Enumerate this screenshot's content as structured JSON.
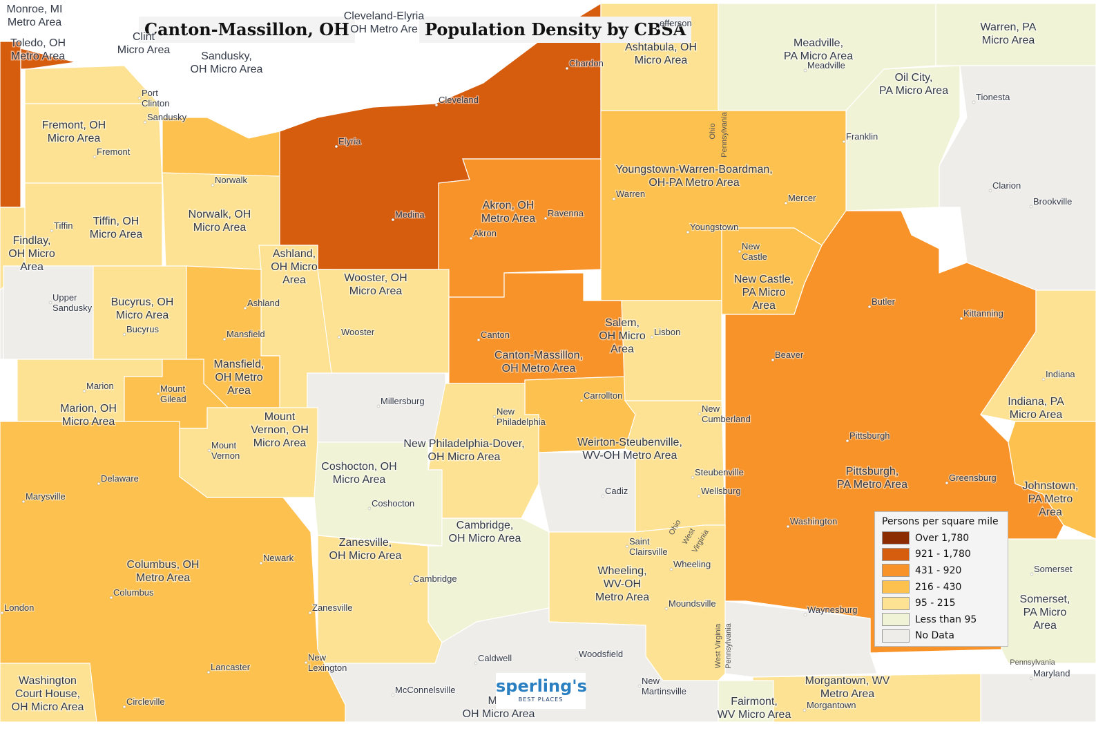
{
  "header": {
    "region_title": "Canton-Massillon, OH",
    "map_title": "Population Density by CBSA"
  },
  "legend": {
    "title": "Persons per square mile",
    "items": [
      {
        "label": "Over 1,780",
        "color": "#8b2c02"
      },
      {
        "label": "921 - 1,780",
        "color": "#d65c0e"
      },
      {
        "label": "431 - 920",
        "color": "#f79329"
      },
      {
        "label": "216 - 430",
        "color": "#fdc150"
      },
      {
        "label": "95 - 215",
        "color": "#fde293"
      },
      {
        "label": "Less than 95",
        "color": "#f1f3d6"
      },
      {
        "label": "No Data",
        "color": "#eeede9"
      }
    ]
  },
  "logo": {
    "name": "sperling's",
    "tagline": "BEST PLACES"
  },
  "area_labels": [
    {
      "text": "Monroe, MI\nMetro Area"
    },
    {
      "text": "Toledo, OH\nMetro Area"
    },
    {
      "text": "Clint\nMicro Area"
    },
    {
      "text": "Sandusky,\nOH Micro Area"
    },
    {
      "text": "Cleveland-Elyria\nOH Metro Are"
    },
    {
      "text": "Ashtabula, OH\nMicro Area"
    },
    {
      "text": "Meadville,\nPA Micro Area"
    },
    {
      "text": "Warren, PA\nMicro Area"
    },
    {
      "text": "Oil City,\nPA Micro Area"
    },
    {
      "text": "Fremont, OH\nMicro Area"
    },
    {
      "text": "Youngstown-Warren-Boardman,\nOH-PA Metro Area"
    },
    {
      "text": "Akron, OH\nMetro Area"
    },
    {
      "text": "Norwalk, OH\nMicro Area"
    },
    {
      "text": "Tiffin, OH\nMicro Area"
    },
    {
      "text": "Findlay,\nOH Micro\nArea"
    },
    {
      "text": "Ashland,\nOH Micro\nArea"
    },
    {
      "text": "Wooster, OH\nMicro Area"
    },
    {
      "text": "New Castle,\nPA Micro\nArea"
    },
    {
      "text": "Bucyrus, OH\nMicro Area"
    },
    {
      "text": "Salem,\nOH Micro\nArea"
    },
    {
      "text": "Canton-Massillon,\nOH Metro Area"
    },
    {
      "text": "Mansfield,\nOH Metro\nArea"
    },
    {
      "text": "Marion, OH\nMicro Area"
    },
    {
      "text": "Mount\nVernon, OH\nMicro Area"
    },
    {
      "text": "New Philadelphia-Dover,\nOH Micro Area"
    },
    {
      "text": "Weirton-Steubenville,\nWV-OH Metro Area"
    },
    {
      "text": "Indiana, PA\nMicro Area"
    },
    {
      "text": "Coshocton, OH\nMicro Area"
    },
    {
      "text": "Pittsburgh,\nPA Metro Area"
    },
    {
      "text": "Johnstown,\nPA Metro\nArea"
    },
    {
      "text": "Cambridge,\nOH Micro Area"
    },
    {
      "text": "Zanesville,\nOH Micro Area"
    },
    {
      "text": "Columbus, OH\nMetro Area"
    },
    {
      "text": "Wheeling,\nWV-OH\nMetro Area"
    },
    {
      "text": "Somerset,\nPA Micro\nArea"
    },
    {
      "text": "Washington\nCourt House,\nOH Micro Area"
    },
    {
      "text": "Morgantown, WV\nMetro Area"
    },
    {
      "text": "Fairmont,\nWV Micro Area"
    },
    {
      "text": "Mari\nOH Micro Area"
    }
  ],
  "city_labels": [
    {
      "text": "Port\nClinton"
    },
    {
      "text": "Sandusky"
    },
    {
      "text": "Fremont"
    },
    {
      "text": "Norwalk"
    },
    {
      "text": "Tiffin"
    },
    {
      "text": "Elyria"
    },
    {
      "text": "Cleveland"
    },
    {
      "text": "Chardon"
    },
    {
      "text": "efferson"
    },
    {
      "text": "Meadville"
    },
    {
      "text": "Tionesta"
    },
    {
      "text": "Franklin"
    },
    {
      "text": "Clarion"
    },
    {
      "text": "Brookville"
    },
    {
      "text": "Warren"
    },
    {
      "text": "Mercer"
    },
    {
      "text": "Youngstown"
    },
    {
      "text": "Medina"
    },
    {
      "text": "Ravenna"
    },
    {
      "text": "Akron"
    },
    {
      "text": "New\nCastle"
    },
    {
      "text": "Butler"
    },
    {
      "text": "Kittanning"
    },
    {
      "text": "Upper\nSandusky"
    },
    {
      "text": "Ashland"
    },
    {
      "text": "Bucyrus"
    },
    {
      "text": "Mansfield"
    },
    {
      "text": "Wooster"
    },
    {
      "text": "Canton"
    },
    {
      "text": "Lisbon"
    },
    {
      "text": "Beaver"
    },
    {
      "text": "Indiana"
    },
    {
      "text": "Marion"
    },
    {
      "text": "Mount\nGilead"
    },
    {
      "text": "Millersburg"
    },
    {
      "text": "Carrollton"
    },
    {
      "text": "New\nPhiladelphia"
    },
    {
      "text": "New\nCumberland"
    },
    {
      "text": "Pittsburgh"
    },
    {
      "text": "Mount\nVernon"
    },
    {
      "text": "Delaware"
    },
    {
      "text": "Marysville"
    },
    {
      "text": "Steubenville"
    },
    {
      "text": "Greensburg"
    },
    {
      "text": "Cadiz"
    },
    {
      "text": "Wellsburg"
    },
    {
      "text": "Coshocton"
    },
    {
      "text": "Washington"
    },
    {
      "text": "Saint\nClairsville"
    },
    {
      "text": "Wheeling"
    },
    {
      "text": "Somerset"
    },
    {
      "text": "Newark"
    },
    {
      "text": "Cambridge"
    },
    {
      "text": "Columbus"
    },
    {
      "text": "Moundsville"
    },
    {
      "text": "Waynesburg"
    },
    {
      "text": "London"
    },
    {
      "text": "Zanesville"
    },
    {
      "text": "Caldwell"
    },
    {
      "text": "Woodsfield"
    },
    {
      "text": "Lancaster"
    },
    {
      "text": "New\nLexington"
    },
    {
      "text": "New\nMartinsville"
    },
    {
      "text": "McConnelsville"
    },
    {
      "text": "Circleville"
    },
    {
      "text": "Morgantown"
    },
    {
      "text": "Maryland"
    }
  ],
  "state_labels": [
    {
      "text": "Ohio"
    },
    {
      "text": "Pennsylvania"
    },
    {
      "text": "Ohio"
    },
    {
      "text": "West"
    },
    {
      "text": "Virginia"
    },
    {
      "text": "West Virginia"
    },
    {
      "text": "Pennsylvania"
    },
    {
      "text": "Pennsylvania"
    }
  ]
}
